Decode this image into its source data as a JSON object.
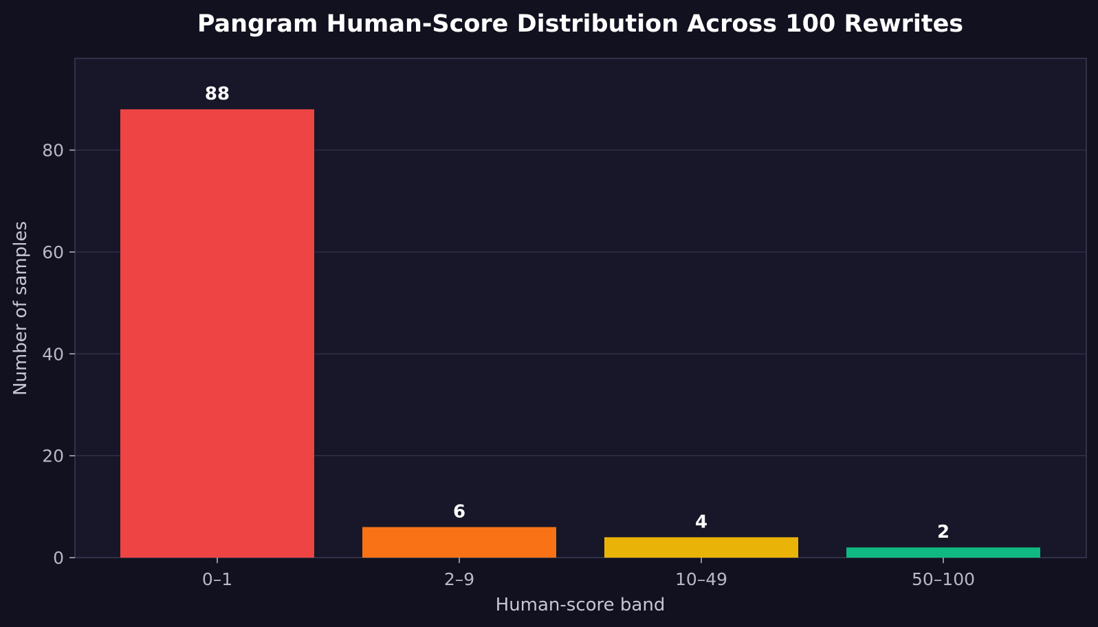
{
  "chart_data": {
    "type": "bar",
    "title": "Pangram Human-Score Distribution Across 100 Rewrites",
    "xlabel": "Human-score band",
    "ylabel": "Number of samples",
    "categories": [
      "0–1",
      "2–9",
      "10–49",
      "50–100"
    ],
    "values": [
      88,
      6,
      4,
      2
    ],
    "data_labels": [
      "88",
      "6",
      "4",
      "2"
    ],
    "ylim": [
      0,
      98
    ],
    "yticks": [
      0,
      20,
      40,
      60,
      80
    ],
    "ytick_labels": [
      "0",
      "20",
      "40",
      "60",
      "80"
    ],
    "grid": "horizontal",
    "colors": [
      "#ef4444",
      "#f97316",
      "#eab308",
      "#10b981"
    ],
    "background": "#12111f",
    "plot_background": "#181729"
  }
}
